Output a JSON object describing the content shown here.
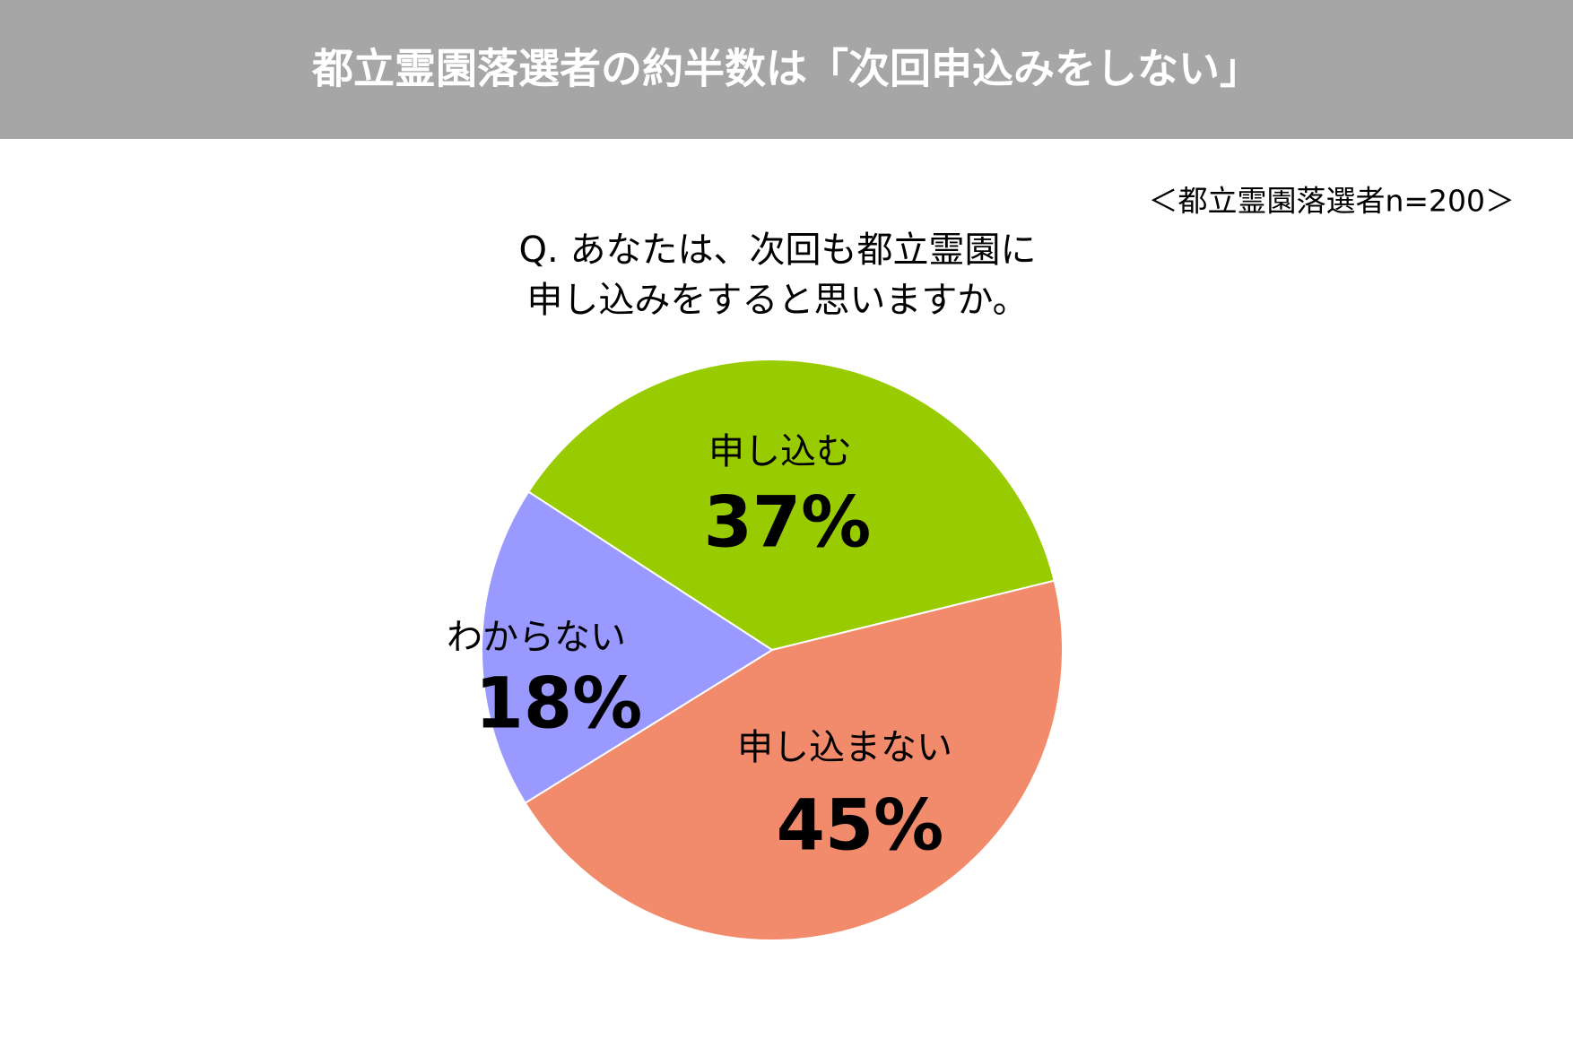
{
  "chart_data": {
    "type": "pie",
    "title": "都立霊園落選者の約半数は「次回申込みをしない」",
    "note": "＜都立霊園落選者n=200＞",
    "question": [
      "Q. あなたは、次回も都立霊園に",
      "申し込みをすると思いますか。"
    ],
    "categories": [
      "申し込む",
      "申し込まない",
      "わからない"
    ],
    "values": [
      37,
      45,
      18
    ],
    "value_labels": [
      "37%",
      "45%",
      "18%"
    ],
    "colors": [
      "#99cc00",
      "#f28b6b",
      "#9999ff"
    ]
  }
}
